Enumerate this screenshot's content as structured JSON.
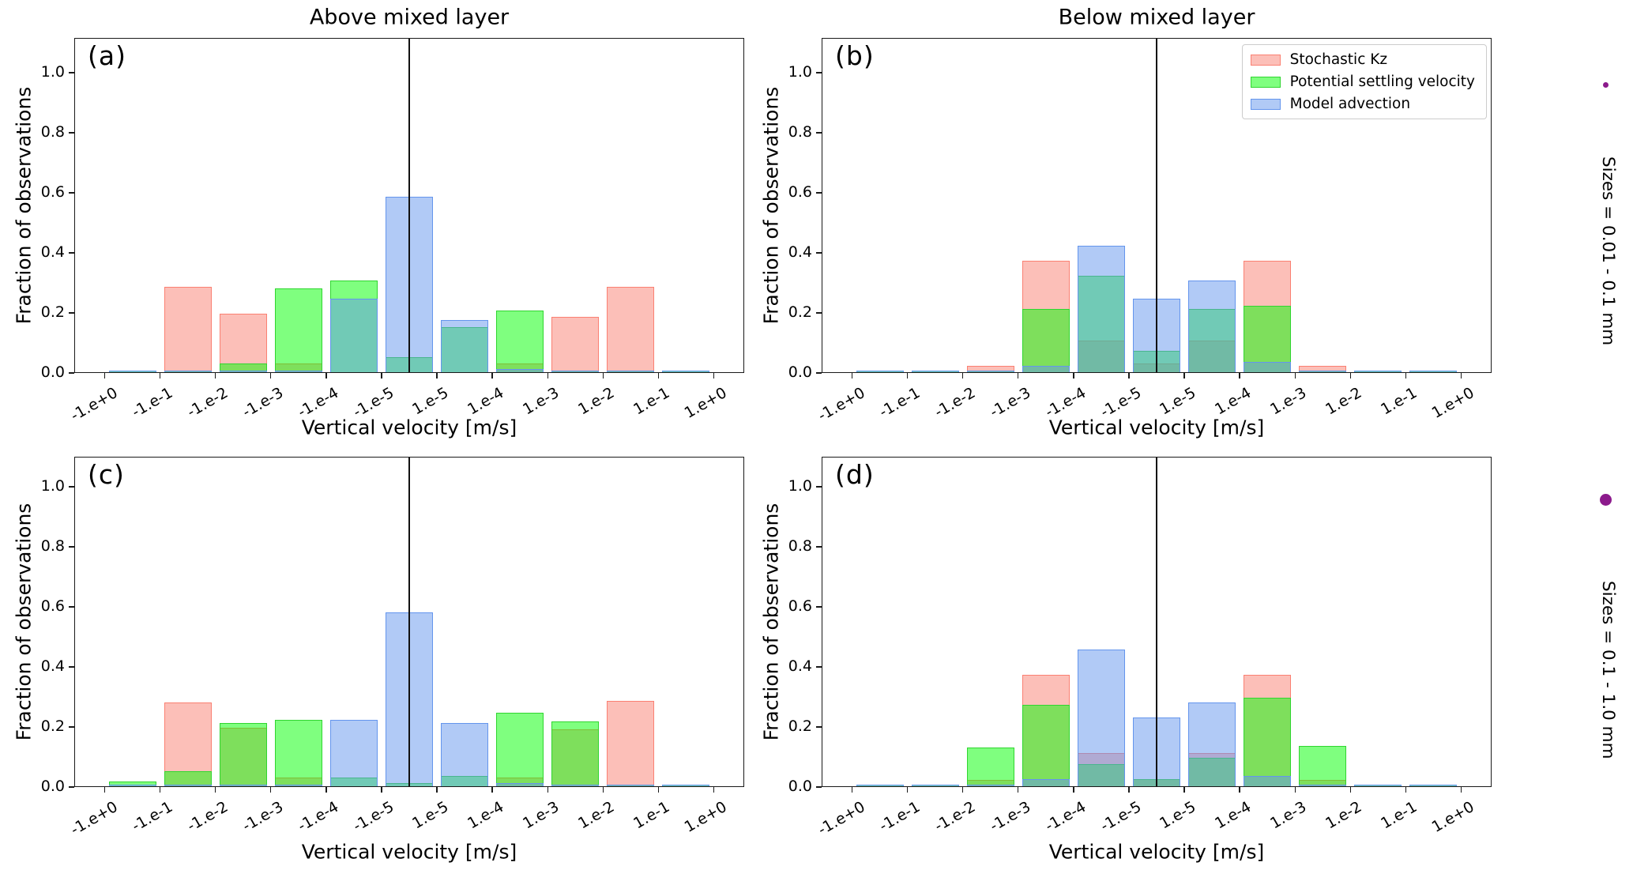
{
  "titles": {
    "above": "Above mixed layer",
    "below": "Below mixed layer"
  },
  "axes": {
    "xlabel": "Vertical velocity [m/s]",
    "ylabel": "Fraction of observations",
    "yticks": [
      "0.0",
      "0.2",
      "0.4",
      "0.6",
      "0.8",
      "1.0"
    ],
    "ytick_values": [
      0.0,
      0.2,
      0.4,
      0.6,
      0.8,
      1.0
    ],
    "xtick_labels": [
      "-1.e+0",
      "-1.e-1",
      "-1.e-2",
      "-1.e-3",
      "-1.e-4",
      "-1.e-5",
      "1.e-5",
      "1.e-4",
      "1.e-3",
      "1.e-2",
      "1.e-1",
      "1.e+0"
    ],
    "ylim": [
      0,
      1.1
    ]
  },
  "legend": {
    "entries": [
      {
        "label": "Stochastic Kz",
        "fill": "rgba(250,128,114,0.5)",
        "edge": "#fa8072"
      },
      {
        "label": "Potential settling velocity",
        "fill": "rgba(0,255,0,0.5)",
        "edge": "#30d530"
      },
      {
        "label": "Model advection",
        "fill": "rgba(100,149,237,0.5)",
        "edge": "#6495ed"
      }
    ]
  },
  "size_annotations": [
    {
      "label": "Sizes = 0.01 - 0.1 mm",
      "dot_color": "#8c1a8c",
      "dot_diameter": 7
    },
    {
      "label": "Sizes = 0.1 - 1.0 mm",
      "dot_color": "#8c1a8c",
      "dot_diameter": 15
    }
  ],
  "zero_line_color": "#111111",
  "chart_data": [
    {
      "panel": "a",
      "letter": "(a)",
      "type": "bar",
      "column_title": "Above mixed layer",
      "size_range": "Sizes = 0.01 - 0.1 mm",
      "xlabel": "Vertical velocity [m/s]",
      "ylabel": "Fraction of observations",
      "ylim": [
        0,
        1.1
      ],
      "bin_edge_labels": [
        "-1.e+0",
        "-1.e-1",
        "-1.e-2",
        "-1.e-3",
        "-1.e-4",
        "-1.e-5",
        "1.e-5",
        "1.e-4",
        "1.e-3",
        "1.e-2",
        "1.e-1",
        "1.e+0"
      ],
      "zero_line_between": [
        "-1.e-5",
        "1.e-5"
      ],
      "series": [
        {
          "name": "Stochastic Kz",
          "values": [
            0,
            0.285,
            0.195,
            0.03,
            0,
            0,
            0,
            0.03,
            0.185,
            0.285,
            0
          ]
        },
        {
          "name": "Potential settling velocity",
          "values": [
            0.005,
            0.005,
            0.03,
            0.28,
            0.305,
            0.05,
            0.15,
            0.205,
            0.005,
            0.005,
            0.005
          ]
        },
        {
          "name": "Model advection",
          "values": [
            0.005,
            0.005,
            0.005,
            0.005,
            0.245,
            0.585,
            0.175,
            0.01,
            0.005,
            0.005,
            0.005
          ]
        }
      ]
    },
    {
      "panel": "b",
      "letter": "(b)",
      "type": "bar",
      "column_title": "Below mixed layer",
      "size_range": "Sizes = 0.01 - 0.1 mm",
      "xlabel": "Vertical velocity [m/s]",
      "ylabel": "Fraction of observations",
      "ylim": [
        0,
        1.1
      ],
      "bin_edge_labels": [
        "-1.e+0",
        "-1.e-1",
        "-1.e-2",
        "-1.e-3",
        "-1.e-4",
        "-1.e-5",
        "1.e-5",
        "1.e-4",
        "1.e-3",
        "1.e-2",
        "1.e-1",
        "1.e+0"
      ],
      "zero_line_between": [
        "-1.e-5",
        "1.e-5"
      ],
      "series": [
        {
          "name": "Stochastic Kz",
          "values": [
            0,
            0,
            0.02,
            0.37,
            0.105,
            0.03,
            0.105,
            0.37,
            0.02,
            0,
            0
          ]
        },
        {
          "name": "Potential settling velocity",
          "values": [
            0.005,
            0.005,
            0.005,
            0.21,
            0.32,
            0.07,
            0.21,
            0.22,
            0.005,
            0.005,
            0.005
          ]
        },
        {
          "name": "Model advection",
          "values": [
            0.005,
            0.005,
            0.005,
            0.02,
            0.42,
            0.245,
            0.305,
            0.035,
            0.005,
            0.005,
            0.005
          ]
        }
      ]
    },
    {
      "panel": "c",
      "letter": "(c)",
      "type": "bar",
      "column_title": "Above mixed layer",
      "size_range": "Sizes = 0.1 - 1.0 mm",
      "xlabel": "Vertical velocity [m/s]",
      "ylabel": "Fraction of observations",
      "ylim": [
        0,
        1.1
      ],
      "bin_edge_labels": [
        "-1.e+0",
        "-1.e-1",
        "-1.e-2",
        "-1.e-3",
        "-1.e-4",
        "-1.e-5",
        "1.e-5",
        "1.e-4",
        "1.e-3",
        "1.e-2",
        "1.e-1",
        "1.e+0"
      ],
      "zero_line_between": [
        "-1.e-5",
        "1.e-5"
      ],
      "series": [
        {
          "name": "Stochastic Kz",
          "values": [
            0,
            0.28,
            0.195,
            0.03,
            0,
            0,
            0,
            0.03,
            0.19,
            0.285,
            0
          ]
        },
        {
          "name": "Potential settling velocity",
          "values": [
            0.015,
            0.05,
            0.21,
            0.22,
            0.03,
            0.01,
            0.035,
            0.245,
            0.215,
            0.005,
            0.005
          ]
        },
        {
          "name": "Model advection",
          "values": [
            0.005,
            0.005,
            0.005,
            0.005,
            0.22,
            0.58,
            0.21,
            0.01,
            0.005,
            0.005,
            0.005
          ]
        }
      ]
    },
    {
      "panel": "d",
      "letter": "(d)",
      "type": "bar",
      "column_title": "Below mixed layer",
      "size_range": "Sizes = 0.1 - 1.0 mm",
      "xlabel": "Vertical velocity [m/s]",
      "ylabel": "Fraction of observations",
      "ylim": [
        0,
        1.1
      ],
      "bin_edge_labels": [
        "-1.e+0",
        "-1.e-1",
        "-1.e-2",
        "-1.e-3",
        "-1.e-4",
        "-1.e-5",
        "1.e-5",
        "1.e-4",
        "1.e-3",
        "1.e-2",
        "1.e-1",
        "1.e+0"
      ],
      "zero_line_between": [
        "-1.e-5",
        "1.e-5"
      ],
      "series": [
        {
          "name": "Stochastic Kz",
          "values": [
            0,
            0,
            0.02,
            0.37,
            0.11,
            0.025,
            0.11,
            0.37,
            0.02,
            0,
            0
          ]
        },
        {
          "name": "Potential settling velocity",
          "values": [
            0.005,
            0.005,
            0.13,
            0.27,
            0.075,
            0.025,
            0.095,
            0.295,
            0.135,
            0.005,
            0.005
          ]
        },
        {
          "name": "Model advection",
          "values": [
            0.005,
            0.005,
            0.005,
            0.025,
            0.455,
            0.23,
            0.28,
            0.035,
            0.005,
            0.005,
            0.005
          ]
        }
      ]
    }
  ]
}
